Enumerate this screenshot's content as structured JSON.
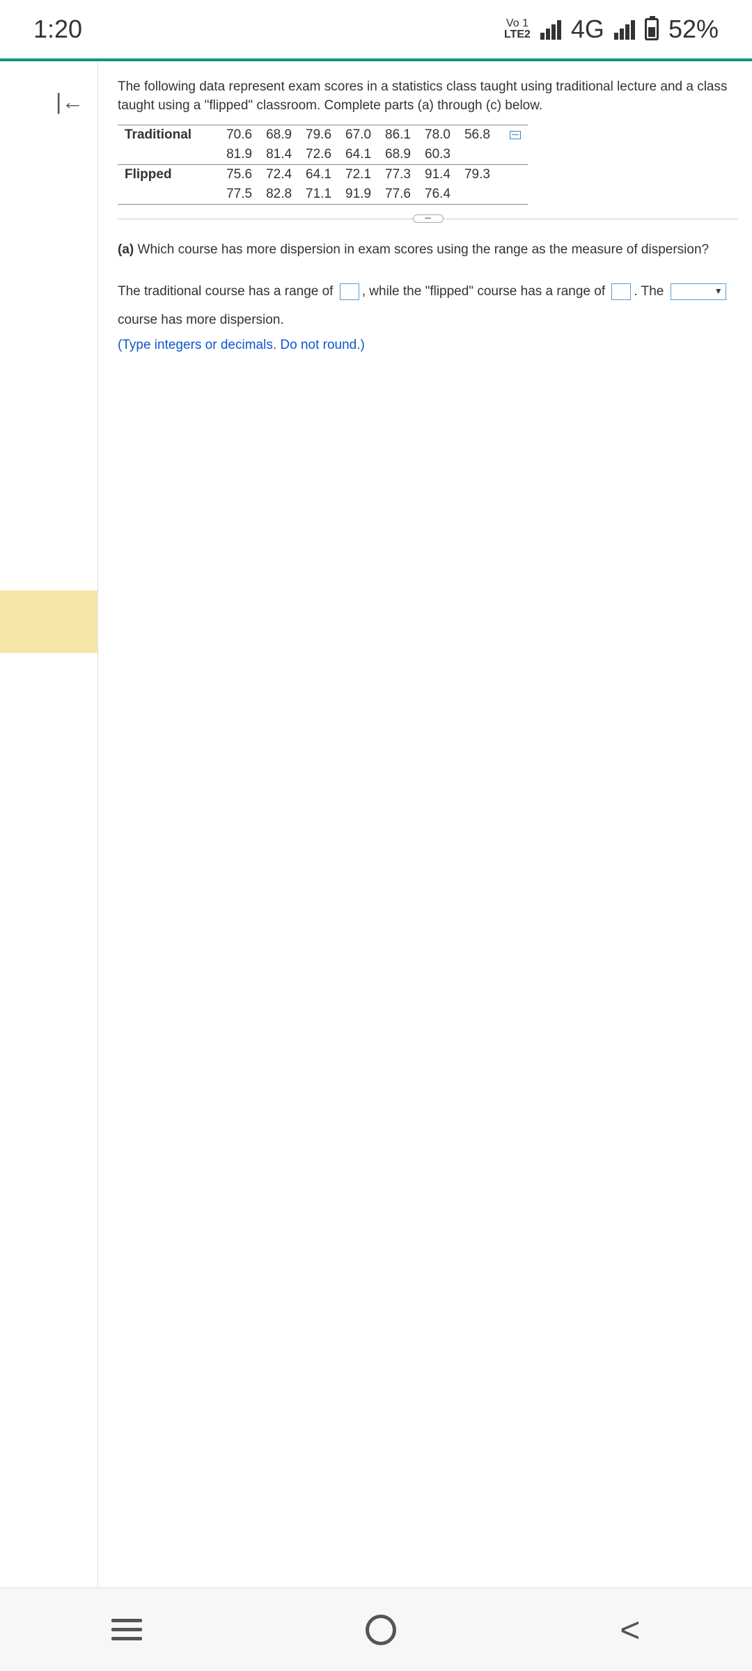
{
  "status": {
    "time": "1:20",
    "lte_line1": "Vo 1",
    "lte_line2": "LTE2",
    "network": "4G",
    "battery_pct": "52%"
  },
  "problem": {
    "intro": "The following data represent exam scores in a statistics class taught using traditional lecture and a class taught using a \"flipped\" classroom. Complete parts (a) through (c) below.",
    "rows": [
      {
        "label": "Traditional",
        "values": [
          "70.6",
          "68.9",
          "79.6",
          "67.0",
          "86.1",
          "78.0",
          "56.8"
        ]
      },
      {
        "label": "",
        "values": [
          "81.9",
          "81.4",
          "72.6",
          "64.1",
          "68.9",
          "60.3",
          ""
        ]
      },
      {
        "label": "Flipped",
        "values": [
          "75.6",
          "72.4",
          "64.1",
          "72.1",
          "77.3",
          "91.4",
          "79.3"
        ]
      },
      {
        "label": "",
        "values": [
          "77.5",
          "82.8",
          "71.1",
          "91.9",
          "77.6",
          "76.4",
          ""
        ]
      }
    ]
  },
  "question": {
    "part_label": "(a)",
    "part_text": "Which course has more dispersion in exam scores using the range as the measure of dispersion?",
    "answer_pre": "The traditional course has a range of",
    "answer_mid1": ", while the \"flipped\" course has a range of",
    "answer_mid2": ". The",
    "answer_post": "course has more dispersion.",
    "hint": "(Type integers or decimals. Do not round.)"
  }
}
